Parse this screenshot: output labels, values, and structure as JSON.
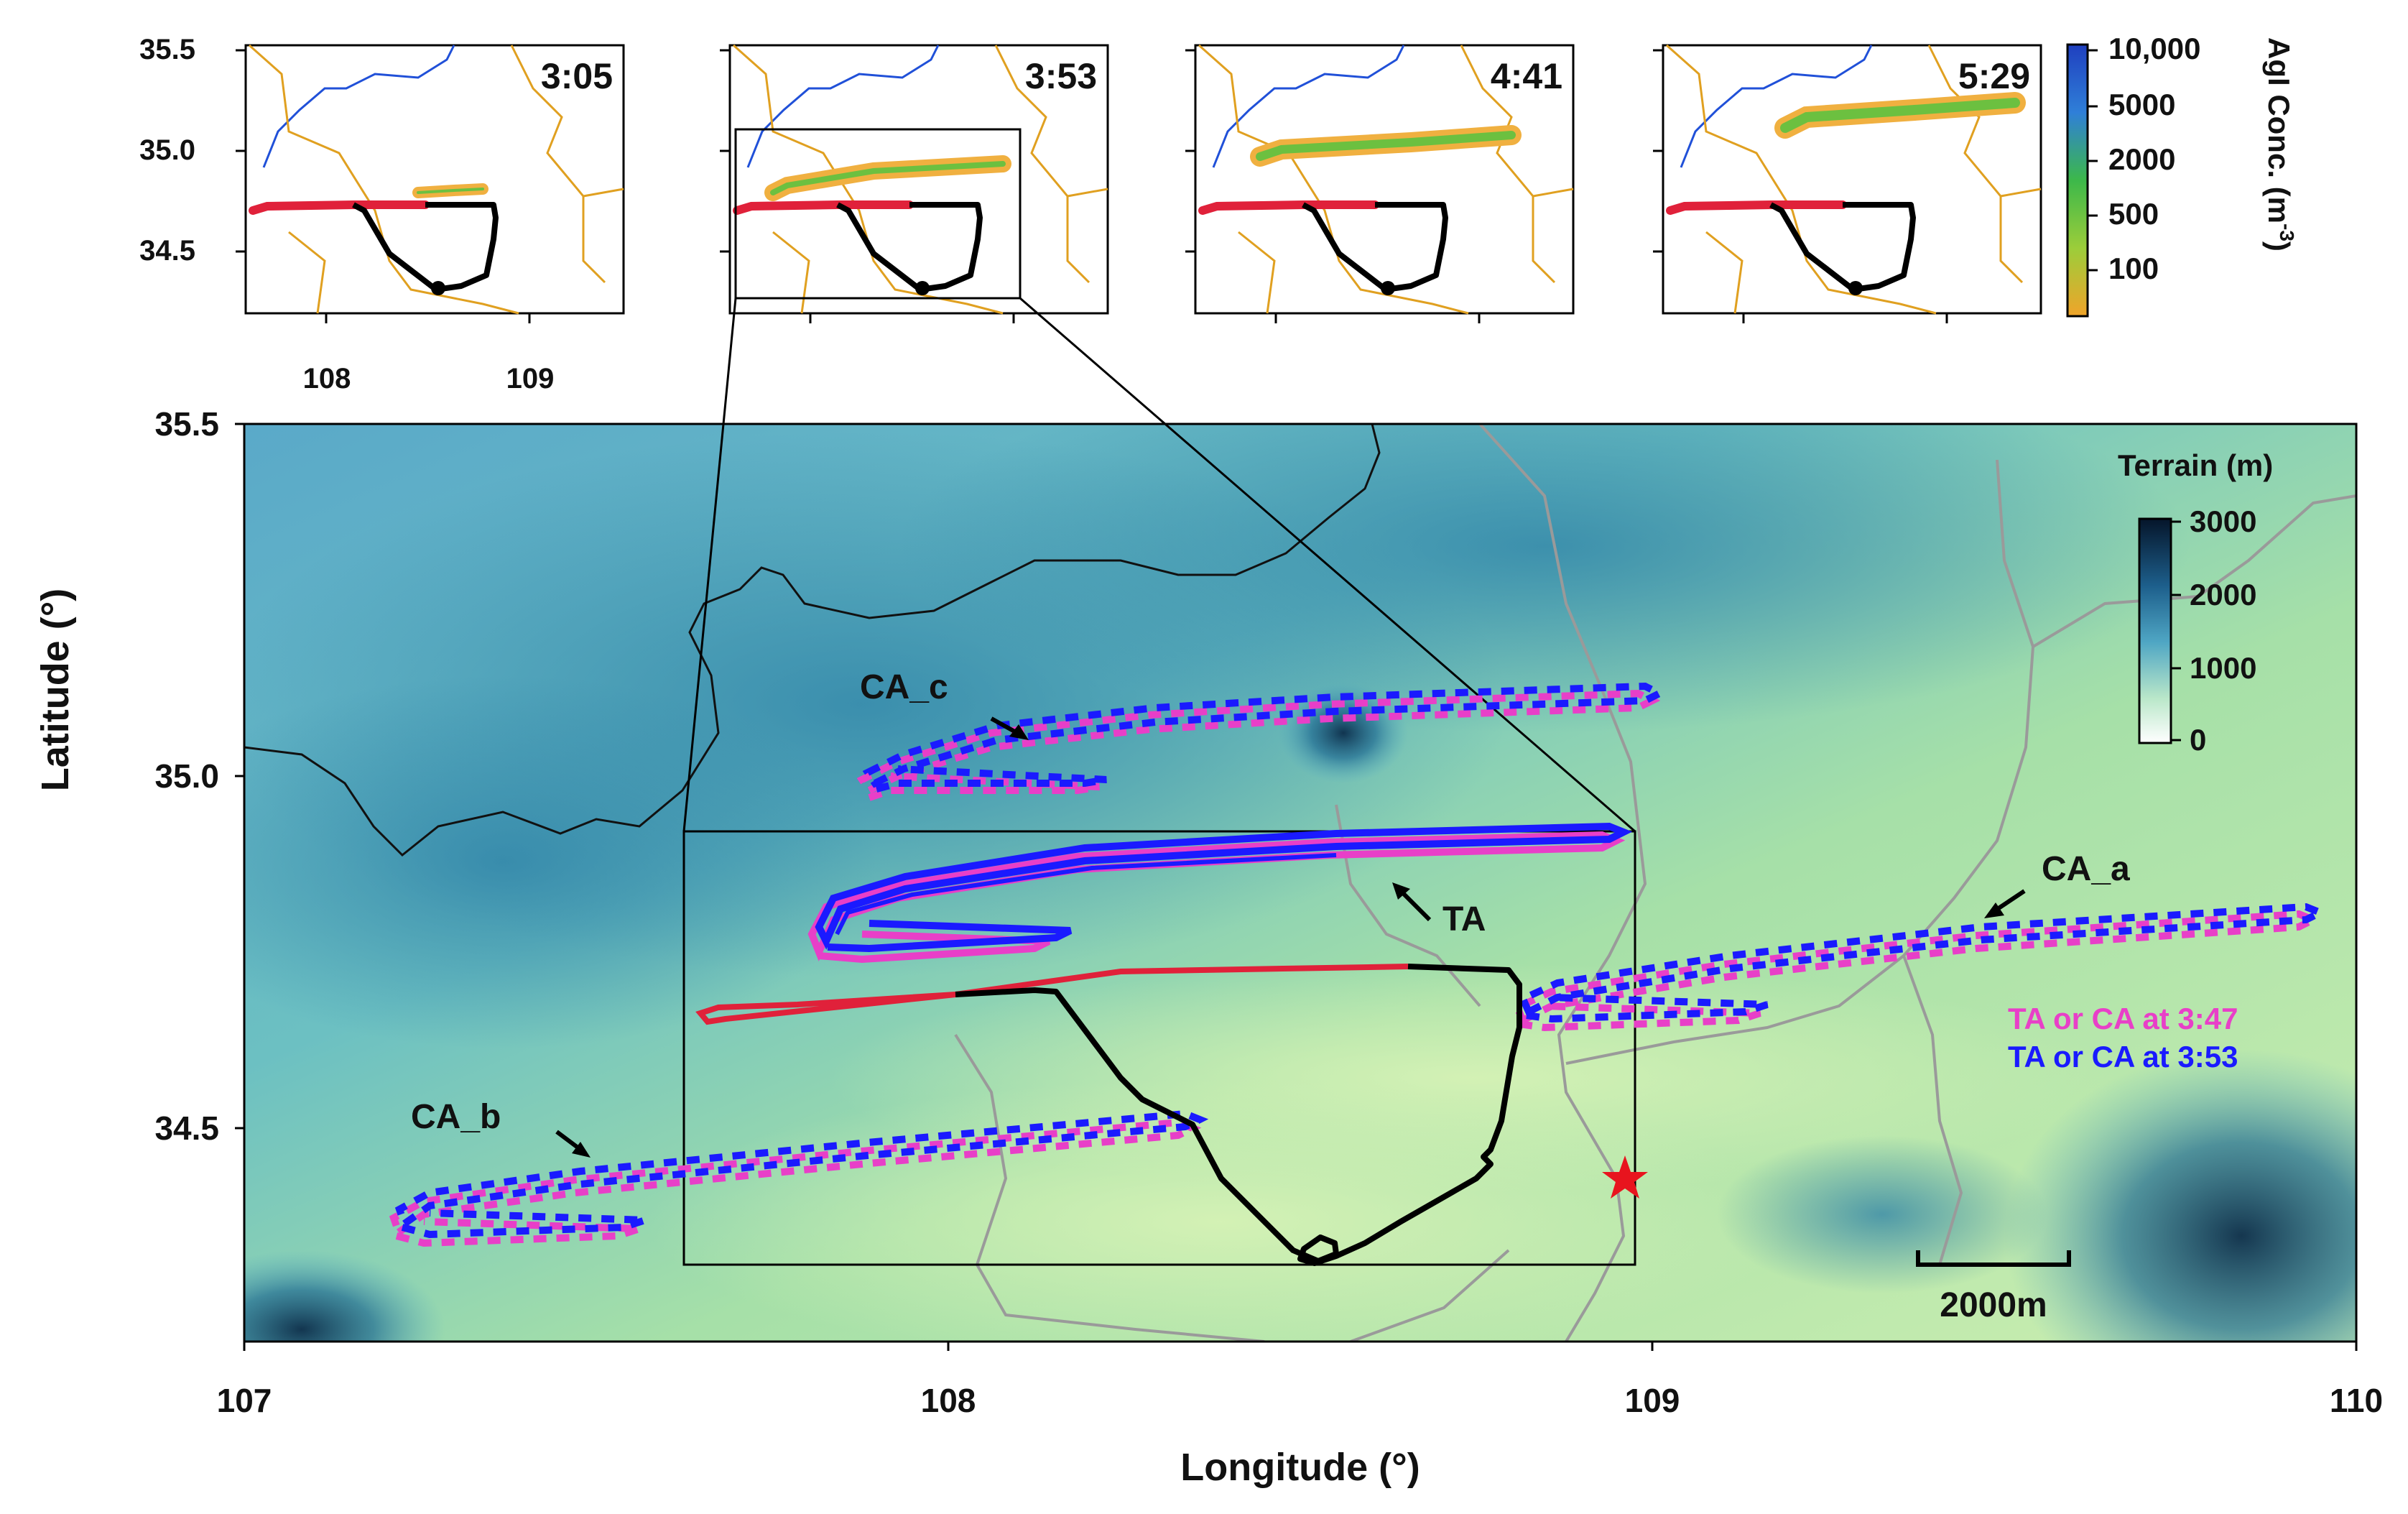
{
  "insets": [
    {
      "time": "3:05"
    },
    {
      "time": "3:53"
    },
    {
      "time": "4:41"
    },
    {
      "time": "5:29"
    }
  ],
  "inset_axes": {
    "yticks": [
      "35.5",
      "35.0",
      "34.5"
    ],
    "xticks": [
      "108",
      "109"
    ]
  },
  "concentration_legend": {
    "title": "AgI Conc. (m",
    "title_exp": "-3",
    "title_close": ")",
    "ticks": [
      "10,000",
      "5000",
      "2000",
      "500",
      "100"
    ],
    "colors": [
      "#1f3fbf",
      "#2f7fd8",
      "#3cb84a",
      "#9ccd3a",
      "#f0a42a"
    ]
  },
  "main_map": {
    "xlabel": "Longitude (°)",
    "ylabel": "Latitude (°)",
    "xticks": [
      "107",
      "108",
      "109",
      "110"
    ],
    "yticks": [
      "35.5",
      "35.0",
      "34.5"
    ],
    "terrain_title": "Terrain (m)",
    "terrain_ticks": [
      "3000",
      "2000",
      "1000",
      "0"
    ],
    "scale_bar": "2000m",
    "labels": {
      "ca_c": "CA_c",
      "ca_a": "CA_a",
      "ca_b": "CA_b",
      "ta": "TA"
    },
    "legend": [
      {
        "text": "TA or CA at 3:47",
        "color": "#e83fc8"
      },
      {
        "text": "TA or CA at 3:53",
        "color": "#1a1aff"
      }
    ],
    "colors": {
      "flight_red": "#e0213a",
      "flight_black": "#000000",
      "star": "#e8141e"
    }
  }
}
